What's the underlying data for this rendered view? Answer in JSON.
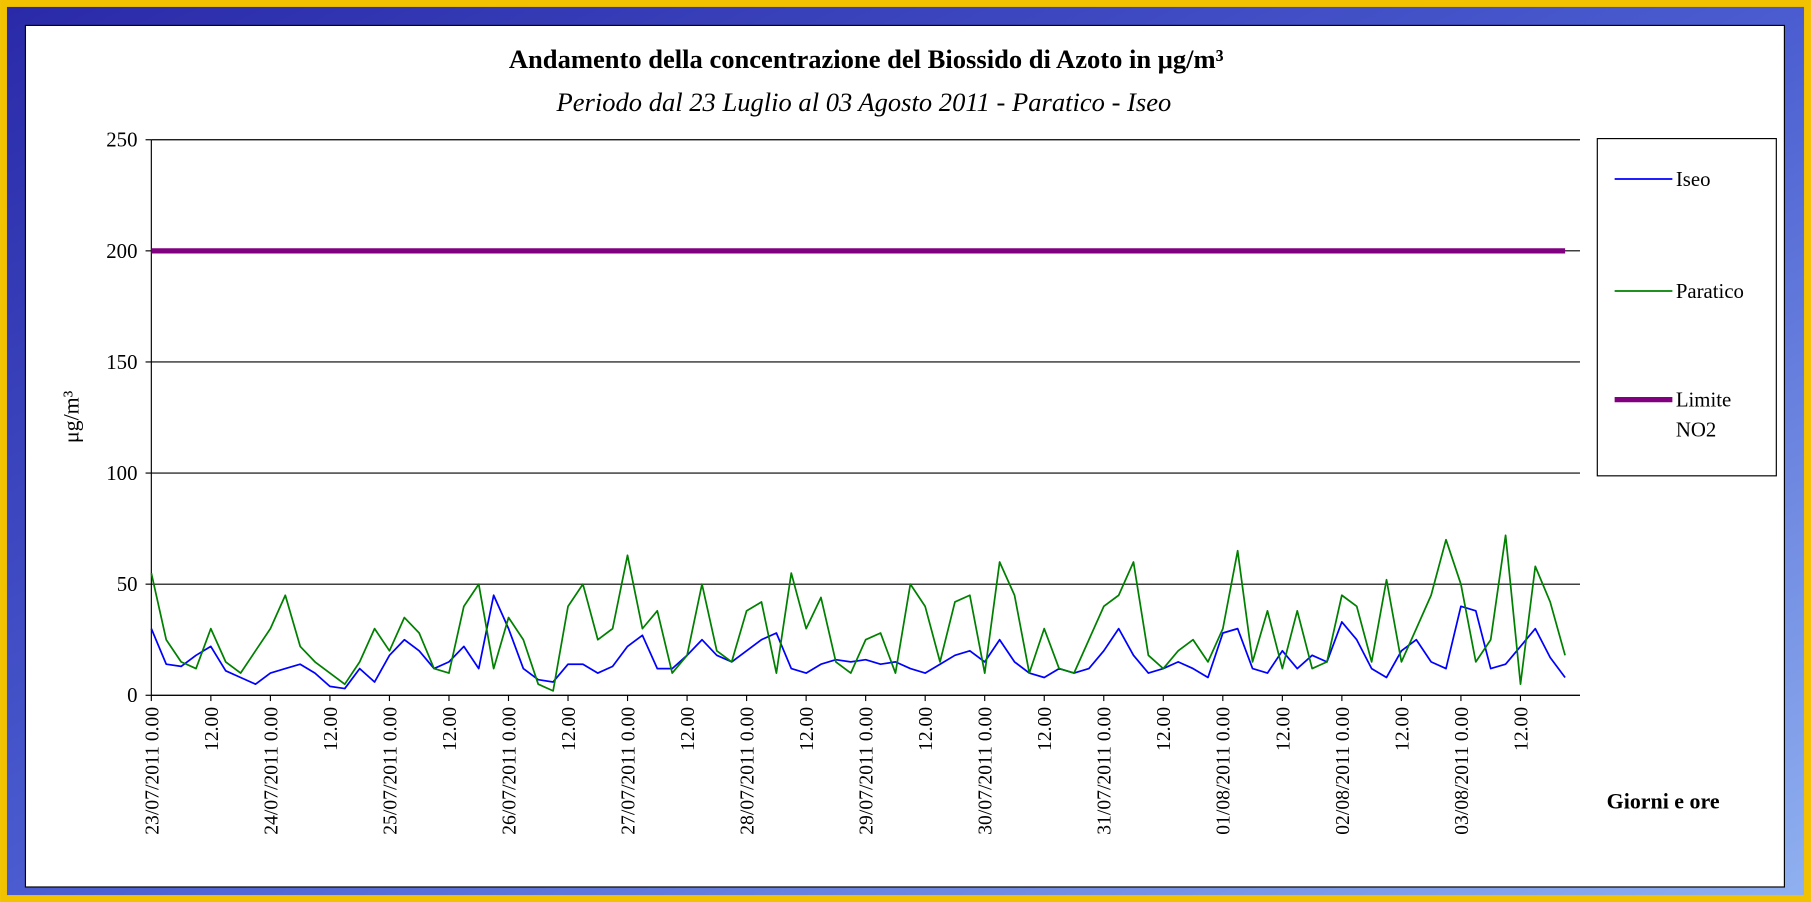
{
  "chart_data": {
    "type": "line",
    "title": "Andamento della concentrazione del Biossido di Azoto in μg/m³",
    "subtitle": "Periodo dal 23 Luglio al 03 Agosto 2011 - Paratico - Iseo",
    "y_label": "μg/m³",
    "x_label": "Giorni e ore",
    "ylim": [
      0,
      250
    ],
    "yticks": [
      0,
      50,
      100,
      150,
      200,
      250
    ],
    "grid": true,
    "legend": "right",
    "categories": [
      "23/07/2011 0.00",
      null,
      null,
      null,
      "12.00",
      null,
      null,
      null,
      "24/07/2011 0.00",
      null,
      null,
      null,
      "12.00",
      null,
      null,
      null,
      "25/07/2011 0.00",
      null,
      null,
      null,
      "12.00",
      null,
      null,
      null,
      "26/07/2011 0.00",
      null,
      null,
      null,
      "12.00",
      null,
      null,
      null,
      "27/07/2011 0.00",
      null,
      null,
      null,
      "12.00",
      null,
      null,
      null,
      "28/07/2011 0.00",
      null,
      null,
      null,
      "12.00",
      null,
      null,
      null,
      "29/07/2011 0.00",
      null,
      null,
      null,
      "12.00",
      null,
      null,
      null,
      "30/07/2011 0.00",
      null,
      null,
      null,
      "12.00",
      null,
      null,
      null,
      "31/07/2011 0.00",
      null,
      null,
      null,
      "12.00",
      null,
      null,
      null,
      "01/08/2011 0.00",
      null,
      null,
      null,
      "12.00",
      null,
      null,
      null,
      "02/08/2011 0.00",
      null,
      null,
      null,
      "12.00",
      null,
      null,
      null,
      "03/08/2011 0.00",
      null,
      null,
      null,
      "12.00",
      null,
      null,
      null
    ],
    "series": [
      {
        "name": "Iseo",
        "color": "#0000ff",
        "width": 1.5,
        "values": [
          30,
          14,
          13,
          18,
          22,
          11,
          8,
          5,
          10,
          12,
          14,
          10,
          4,
          3,
          12,
          6,
          18,
          25,
          20,
          12,
          15,
          22,
          12,
          45,
          30,
          12,
          7,
          6,
          14,
          14,
          10,
          13,
          22,
          27,
          12,
          12,
          18,
          25,
          18,
          15,
          20,
          25,
          28,
          12,
          10,
          14,
          16,
          15,
          16,
          14,
          15,
          12,
          10,
          14,
          18,
          20,
          15,
          25,
          15,
          10,
          8,
          12,
          10,
          12,
          20,
          30,
          18,
          10,
          12,
          15,
          12,
          8,
          28,
          30,
          12,
          10,
          20,
          12,
          18,
          15,
          33,
          25,
          12,
          8,
          20,
          25,
          15,
          12,
          40,
          38,
          12,
          14,
          22,
          30,
          17,
          8
        ]
      },
      {
        "name": "Paratico",
        "color": "#008000",
        "width": 1.5,
        "values": [
          55,
          25,
          15,
          12,
          30,
          15,
          10,
          20,
          30,
          45,
          22,
          15,
          10,
          5,
          15,
          30,
          20,
          35,
          28,
          12,
          10,
          40,
          50,
          12,
          35,
          25,
          5,
          2,
          40,
          50,
          25,
          30,
          63,
          30,
          38,
          10,
          18,
          50,
          20,
          15,
          38,
          42,
          10,
          55,
          30,
          44,
          15,
          10,
          25,
          28,
          10,
          50,
          40,
          15,
          42,
          45,
          10,
          60,
          45,
          10,
          30,
          12,
          10,
          25,
          40,
          45,
          60,
          18,
          12,
          20,
          25,
          15,
          30,
          65,
          15,
          38,
          12,
          38,
          12,
          15,
          45,
          40,
          15,
          52,
          15,
          30,
          45,
          70,
          50,
          15,
          25,
          72,
          5,
          58,
          42,
          18
        ]
      },
      {
        "name": "Limite NO2",
        "color": "#800080",
        "width": 4.5,
        "values": [
          200,
          200,
          200,
          200,
          200,
          200,
          200,
          200,
          200,
          200,
          200,
          200,
          200,
          200,
          200,
          200,
          200,
          200,
          200,
          200,
          200,
          200,
          200,
          200,
          200,
          200,
          200,
          200,
          200,
          200,
          200,
          200,
          200,
          200,
          200,
          200,
          200,
          200,
          200,
          200,
          200,
          200,
          200,
          200,
          200,
          200,
          200,
          200,
          200,
          200,
          200,
          200,
          200,
          200,
          200,
          200,
          200,
          200,
          200,
          200,
          200,
          200,
          200,
          200,
          200,
          200,
          200,
          200,
          200,
          200,
          200,
          200,
          200,
          200,
          200,
          200,
          200,
          200,
          200,
          200,
          200,
          200,
          200,
          200,
          200,
          200,
          200,
          200,
          200,
          200,
          200,
          200,
          200,
          200,
          200,
          200
        ]
      }
    ]
  }
}
